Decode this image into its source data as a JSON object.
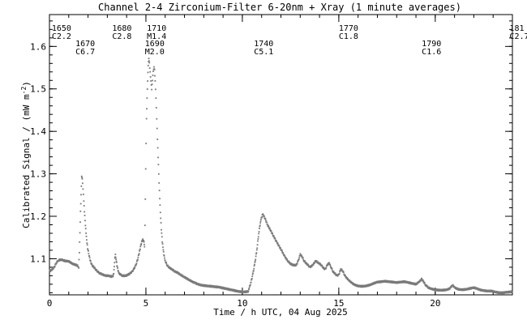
{
  "chart_data": {
    "type": "scatter",
    "title": "Channel 2-4   Zirconium-Filter   6-20nm + Xray   (1 minute averages)",
    "xlabel": "Time / h UTC, 04 Aug 2025",
    "ylabel": "Calibrated Signal / (mW m",
    "ylabel_sup": "-2",
    "ylabel_close": ")",
    "xlim": [
      0,
      24
    ],
    "ylim": [
      1.015,
      1.675
    ],
    "x_ticks": [
      {
        "value": 0,
        "label": "0"
      },
      {
        "value": 5,
        "label": "5"
      },
      {
        "value": 10,
        "label": "10"
      },
      {
        "value": 15,
        "label": "15"
      },
      {
        "value": 20,
        "label": "20"
      }
    ],
    "x_minor_step": 1,
    "y_ticks": [
      {
        "value": 1.1,
        "label": "1.1"
      },
      {
        "value": 1.2,
        "label": "1.2"
      },
      {
        "value": 1.3,
        "label": "1.3"
      },
      {
        "value": 1.4,
        "label": "1.4"
      },
      {
        "value": 1.5,
        "label": "1.5"
      },
      {
        "value": 1.6,
        "label": "1.6"
      }
    ],
    "y_minor_step": 0.02,
    "grid": false,
    "marker_color": "#7a7a7a",
    "annotations": [
      {
        "x": 0.12,
        "row": 0,
        "time": "1650",
        "class": "C2.2"
      },
      {
        "x": 1.35,
        "row": 1,
        "time": "1670",
        "class": "C6.7"
      },
      {
        "x": 3.25,
        "row": 0,
        "time": "1680",
        "class": "C2.8"
      },
      {
        "x": 4.95,
        "row": 1,
        "time": "1690",
        "class": "M2.0"
      },
      {
        "x": 5.05,
        "row": 0,
        "time": "1710",
        "class": "M1.4"
      },
      {
        "x": 10.6,
        "row": 1,
        "time": "1740",
        "class": "C5.1"
      },
      {
        "x": 15.0,
        "row": 0,
        "time": "1770",
        "class": "C1.8"
      },
      {
        "x": 19.3,
        "row": 1,
        "time": "1790",
        "class": "C1.6"
      },
      {
        "x": 23.85,
        "row": 0,
        "time": "181",
        "class": "C2.7"
      }
    ],
    "series": [
      {
        "points": [
          [
            0.0,
            1.07
          ],
          [
            0.15,
            1.075
          ],
          [
            0.25,
            1.08
          ],
          [
            0.35,
            1.09
          ],
          [
            0.45,
            1.096
          ],
          [
            0.6,
            1.098
          ],
          [
            0.8,
            1.095
          ],
          [
            1.0,
            1.094
          ],
          [
            1.2,
            1.088
          ],
          [
            1.4,
            1.085
          ],
          [
            1.5,
            1.082
          ],
          [
            1.52,
            1.08
          ],
          [
            1.55,
            1.115
          ],
          [
            1.58,
            1.16
          ],
          [
            1.61,
            1.21
          ],
          [
            1.64,
            1.25
          ],
          [
            1.67,
            1.295
          ],
          [
            1.7,
            1.29
          ],
          [
            1.74,
            1.265
          ],
          [
            1.78,
            1.235
          ],
          [
            1.83,
            1.2
          ],
          [
            1.88,
            1.17
          ],
          [
            1.93,
            1.145
          ],
          [
            1.98,
            1.125
          ],
          [
            2.05,
            1.108
          ],
          [
            2.12,
            1.095
          ],
          [
            2.2,
            1.085
          ],
          [
            2.3,
            1.08
          ],
          [
            2.4,
            1.075
          ],
          [
            2.5,
            1.07
          ],
          [
            2.6,
            1.066
          ],
          [
            2.75,
            1.063
          ],
          [
            2.9,
            1.06
          ],
          [
            3.0,
            1.06
          ],
          [
            3.1,
            1.06
          ],
          [
            3.2,
            1.058
          ],
          [
            3.3,
            1.06
          ],
          [
            3.33,
            1.065
          ],
          [
            3.36,
            1.08
          ],
          [
            3.39,
            1.1
          ],
          [
            3.42,
            1.11
          ],
          [
            3.45,
            1.1
          ],
          [
            3.5,
            1.085
          ],
          [
            3.55,
            1.072
          ],
          [
            3.62,
            1.065
          ],
          [
            3.7,
            1.062
          ],
          [
            3.8,
            1.06
          ],
          [
            3.9,
            1.06
          ],
          [
            4.0,
            1.061
          ],
          [
            4.1,
            1.063
          ],
          [
            4.2,
            1.066
          ],
          [
            4.3,
            1.07
          ],
          [
            4.4,
            1.078
          ],
          [
            4.5,
            1.088
          ],
          [
            4.58,
            1.1
          ],
          [
            4.65,
            1.113
          ],
          [
            4.72,
            1.128
          ],
          [
            4.78,
            1.14
          ],
          [
            4.84,
            1.145
          ],
          [
            4.9,
            1.14
          ],
          [
            4.93,
            1.13
          ],
          [
            4.95,
            1.18
          ],
          [
            4.97,
            1.24
          ],
          [
            4.99,
            1.31
          ],
          [
            5.01,
            1.37
          ],
          [
            5.03,
            1.43
          ],
          [
            5.06,
            1.48
          ],
          [
            5.09,
            1.52
          ],
          [
            5.12,
            1.555
          ],
          [
            5.15,
            1.57
          ],
          [
            5.18,
            1.56
          ],
          [
            5.22,
            1.54
          ],
          [
            5.26,
            1.52
          ],
          [
            5.3,
            1.5
          ],
          [
            5.34,
            1.52
          ],
          [
            5.38,
            1.54
          ],
          [
            5.42,
            1.55
          ],
          [
            5.45,
            1.545
          ],
          [
            5.48,
            1.52
          ],
          [
            5.52,
            1.48
          ],
          [
            5.56,
            1.43
          ],
          [
            5.6,
            1.38
          ],
          [
            5.65,
            1.32
          ],
          [
            5.7,
            1.26
          ],
          [
            5.75,
            1.21
          ],
          [
            5.8,
            1.17
          ],
          [
            5.85,
            1.14
          ],
          [
            5.9,
            1.12
          ],
          [
            5.95,
            1.105
          ],
          [
            6.0,
            1.095
          ],
          [
            6.1,
            1.085
          ],
          [
            6.2,
            1.08
          ],
          [
            6.35,
            1.075
          ],
          [
            6.5,
            1.07
          ],
          [
            6.65,
            1.067
          ],
          [
            6.8,
            1.062
          ],
          [
            6.95,
            1.058
          ],
          [
            7.1,
            1.054
          ],
          [
            7.25,
            1.05
          ],
          [
            7.4,
            1.046
          ],
          [
            7.55,
            1.043
          ],
          [
            7.7,
            1.04
          ],
          [
            7.85,
            1.038
          ],
          [
            8.0,
            1.037
          ],
          [
            8.2,
            1.036
          ],
          [
            8.4,
            1.035
          ],
          [
            8.6,
            1.034
          ],
          [
            8.8,
            1.033
          ],
          [
            9.0,
            1.031
          ],
          [
            9.2,
            1.029
          ],
          [
            9.4,
            1.027
          ],
          [
            9.6,
            1.025
          ],
          [
            9.8,
            1.023
          ],
          [
            10.0,
            1.022
          ],
          [
            10.15,
            1.022
          ],
          [
            10.3,
            1.023
          ],
          [
            10.35,
            1.03
          ],
          [
            10.45,
            1.045
          ],
          [
            10.55,
            1.065
          ],
          [
            10.65,
            1.09
          ],
          [
            10.75,
            1.12
          ],
          [
            10.85,
            1.16
          ],
          [
            10.95,
            1.19
          ],
          [
            11.05,
            1.205
          ],
          [
            11.12,
            1.2
          ],
          [
            11.2,
            1.192
          ],
          [
            11.3,
            1.18
          ],
          [
            11.45,
            1.168
          ],
          [
            11.6,
            1.155
          ],
          [
            11.75,
            1.142
          ],
          [
            11.9,
            1.13
          ],
          [
            12.05,
            1.118
          ],
          [
            12.2,
            1.105
          ],
          [
            12.35,
            1.095
          ],
          [
            12.5,
            1.088
          ],
          [
            12.65,
            1.085
          ],
          [
            12.8,
            1.085
          ],
          [
            12.9,
            1.095
          ],
          [
            13.0,
            1.11
          ],
          [
            13.1,
            1.105
          ],
          [
            13.2,
            1.095
          ],
          [
            13.3,
            1.09
          ],
          [
            13.4,
            1.085
          ],
          [
            13.5,
            1.08
          ],
          [
            13.65,
            1.085
          ],
          [
            13.8,
            1.095
          ],
          [
            13.95,
            1.09
          ],
          [
            14.1,
            1.085
          ],
          [
            14.2,
            1.078
          ],
          [
            14.3,
            1.075
          ],
          [
            14.4,
            1.085
          ],
          [
            14.5,
            1.09
          ],
          [
            14.6,
            1.08
          ],
          [
            14.7,
            1.07
          ],
          [
            14.8,
            1.065
          ],
          [
            14.9,
            1.06
          ],
          [
            15.0,
            1.062
          ],
          [
            15.1,
            1.075
          ],
          [
            15.2,
            1.072
          ],
          [
            15.3,
            1.062
          ],
          [
            15.4,
            1.055
          ],
          [
            15.55,
            1.048
          ],
          [
            15.7,
            1.042
          ],
          [
            15.85,
            1.038
          ],
          [
            16.0,
            1.036
          ],
          [
            16.2,
            1.035
          ],
          [
            16.4,
            1.036
          ],
          [
            16.6,
            1.038
          ],
          [
            16.8,
            1.042
          ],
          [
            17.0,
            1.045
          ],
          [
            17.2,
            1.046
          ],
          [
            17.4,
            1.047
          ],
          [
            17.6,
            1.046
          ],
          [
            17.8,
            1.045
          ],
          [
            18.0,
            1.044
          ],
          [
            18.2,
            1.045
          ],
          [
            18.4,
            1.046
          ],
          [
            18.6,
            1.044
          ],
          [
            18.8,
            1.042
          ],
          [
            19.0,
            1.04
          ],
          [
            19.15,
            1.045
          ],
          [
            19.3,
            1.052
          ],
          [
            19.4,
            1.046
          ],
          [
            19.5,
            1.038
          ],
          [
            19.65,
            1.032
          ],
          [
            19.8,
            1.029
          ],
          [
            20.0,
            1.027
          ],
          [
            20.2,
            1.026
          ],
          [
            20.4,
            1.026
          ],
          [
            20.6,
            1.027
          ],
          [
            20.75,
            1.03
          ],
          [
            20.9,
            1.038
          ],
          [
            21.0,
            1.032
          ],
          [
            21.2,
            1.028
          ],
          [
            21.4,
            1.027
          ],
          [
            21.6,
            1.028
          ],
          [
            21.8,
            1.03
          ],
          [
            22.0,
            1.032
          ],
          [
            22.15,
            1.03
          ],
          [
            22.3,
            1.027
          ],
          [
            22.5,
            1.025
          ],
          [
            22.7,
            1.024
          ],
          [
            22.9,
            1.024
          ],
          [
            23.1,
            1.022
          ],
          [
            23.3,
            1.02
          ],
          [
            23.5,
            1.02
          ],
          [
            23.7,
            1.021
          ],
          [
            23.9,
            1.022
          ],
          [
            24.0,
            1.023
          ]
        ]
      }
    ]
  }
}
